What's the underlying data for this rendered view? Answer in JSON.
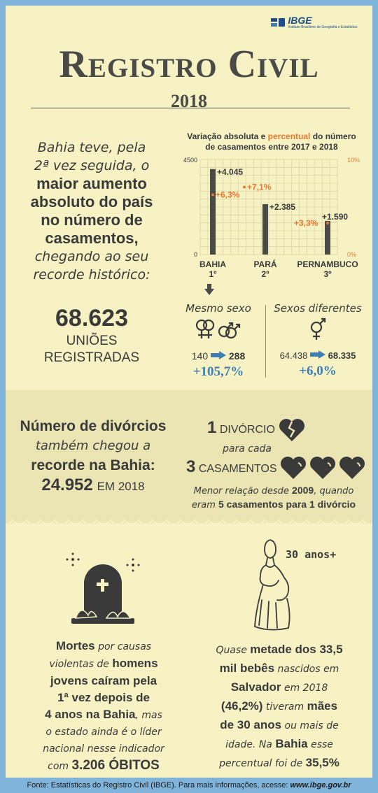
{
  "header": {
    "logo_text": "IBGE",
    "logo_subtitle": "Instituto Brasileiro de Geografia e Estatística",
    "title": "Registro Civil",
    "year": "2018"
  },
  "marriages": {
    "lead_1": "Bahia teve, pela",
    "lead_2": "2ª vez seguida, o",
    "highlight_1": "maior aumento",
    "highlight_2": "absoluto do país",
    "highlight_3": "no número de",
    "highlight_4": "casamentos,",
    "tail_1": "chegando ao seu",
    "tail_2": "recorde histórico:",
    "total": "68.623",
    "total_label_1": "UNIÕES",
    "total_label_2": "REGISTRADAS"
  },
  "chart_data": {
    "type": "bar",
    "title_part1": "Variação absoluta e ",
    "title_highlight": "percentual",
    "title_part2": " do número",
    "title_line2": "de casamentos entre 2017 e 2018",
    "categories": [
      "BAHIA",
      "PARÁ",
      "PERNAMBUCO"
    ],
    "ranks": [
      "1º",
      "2º",
      "3º"
    ],
    "series": [
      {
        "values": [
          4045,
          2385,
          1590
        ],
        "labels": [
          "+4.045",
          "+2.385",
          "+1.590"
        ],
        "axis": "left",
        "color": "#4a4a46"
      },
      {
        "values": [
          6.3,
          7.1,
          3.3
        ],
        "labels": [
          "+6,3%",
          "+7,1%",
          "+3,3%"
        ],
        "axis": "right",
        "color": "#e8782e"
      }
    ],
    "ylim_left": [
      0,
      4500
    ],
    "ylim_right": [
      0,
      10
    ],
    "left_ticks": [
      "0",
      "4500"
    ],
    "right_ticks": [
      "0%",
      "10%"
    ],
    "grid": true
  },
  "same_sex": {
    "title": "Mesmo sexo",
    "from": "140",
    "to": "288",
    "change": "+105,7%"
  },
  "diff_sex": {
    "title": "Sexos diferentes",
    "from": "64.438",
    "to": "68.335",
    "change": "+6,0%"
  },
  "divorces": {
    "line1": "Número de divórcios",
    "line2": "também chegou a",
    "line3": "recorde na Bahia:",
    "total": "24.952",
    "year_label": "EM 2018",
    "ratio_div_num": "1",
    "ratio_div_label": "DIVÓRCIO",
    "ratio_mid": "para cada",
    "ratio_cas_num": "3",
    "ratio_cas_label": "CASAMENTOS",
    "note_1": "Menor relação desde ",
    "note_year": "2009",
    "note_2": ", quando",
    "note_3": "eram ",
    "note_highlight": "5 casamentos para 1 divórcio"
  },
  "deaths": {
    "l1_b": "Mortes",
    "l1_it": " por causas",
    "l2_it": "violentas de ",
    "l2_b": "homens",
    "l3": "jovens caíram pela",
    "l4": "1ª vez depois de",
    "l5_b": "4 anos na Bahia",
    "l5_it": ", mas",
    "l6": "o estado ainda é o líder",
    "l7": "nacional nesse indicador",
    "l8_it": "com ",
    "l8_num": "3.206 ÓBITOS"
  },
  "births": {
    "age_label": "30 anos+",
    "l1_it": "Quase ",
    "l1_b": "metade dos 33,5",
    "l2_b": "mil bebês",
    "l2_it": " nascidos em",
    "l3_b": "Salvador",
    "l3_it": " em 2018",
    "l4_b1": "(46,2%)",
    "l4_it": " tiveram ",
    "l4_b2": "mães",
    "l5_b": "de 30 anos",
    "l5_it": " ou mais de",
    "l6_it1": "idade. Na ",
    "l6_b": "Bahia",
    "l6_it2": " esse",
    "l7_it": "percentual foi de ",
    "l7_b": "35,5%"
  },
  "footer": {
    "text": "Fonte: Estatísticas do Registro Civil (IBGE). Para mais informações, acesse: ",
    "link": "www.ibge.gov.br"
  }
}
